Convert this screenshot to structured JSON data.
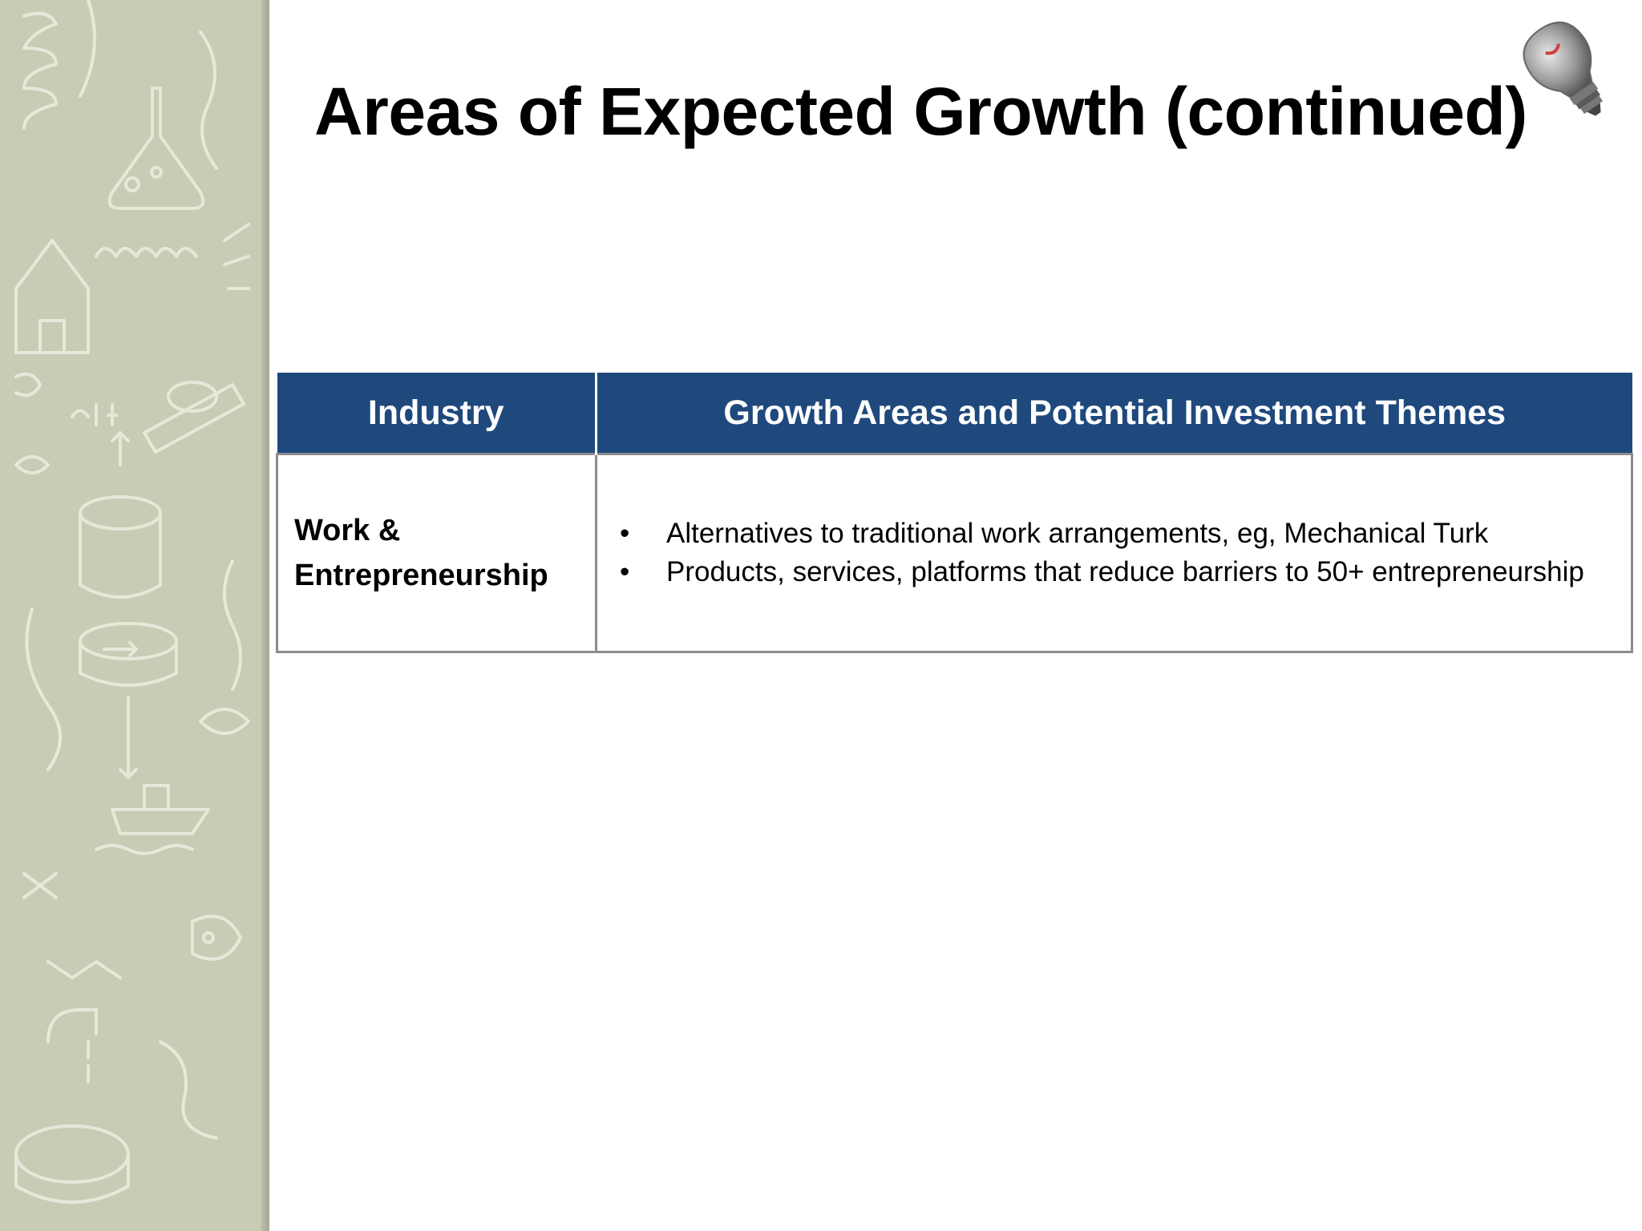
{
  "slide": {
    "title": "Areas of Expected Growth (continued)"
  },
  "table": {
    "headers": {
      "industry": "Industry",
      "themes": "Growth Areas and Potential  Investment Themes"
    },
    "rows": [
      {
        "industry": "Work & Entrepreneurship",
        "themes": [
          "Alternatives to traditional work arrangements, eg, Mechanical Turk",
          "Products, services, platforms that reduce barriers to 50+ entrepreneurship"
        ]
      }
    ]
  },
  "colors": {
    "header_background": "#1f497d",
    "sidebar_background": "#c8ccb4",
    "table_border": "#8c8c8c"
  },
  "icons": {
    "sidebar": "doodle-background-pattern",
    "corner": "lightbulb-icon"
  }
}
